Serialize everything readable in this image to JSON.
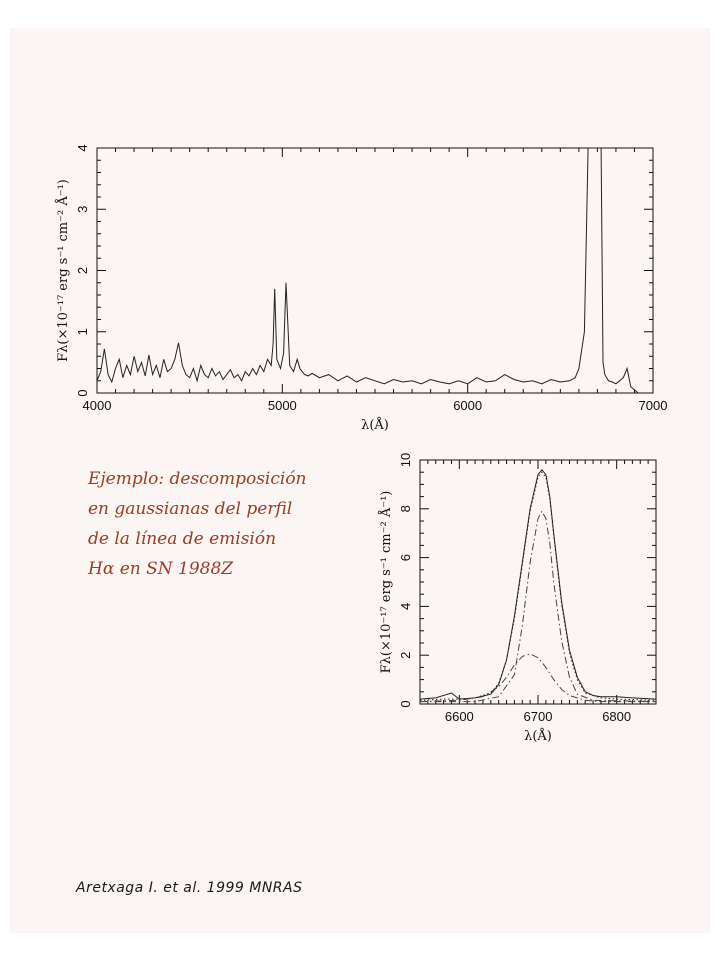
{
  "chart_data": [
    {
      "type": "line",
      "title": "",
      "xlabel": "λ(Å)",
      "ylabel": "Fλ(×10⁻¹⁷ erg s⁻¹ cm⁻² Å⁻¹)",
      "xlim": [
        4000,
        7000
      ],
      "ylim": [
        0,
        4
      ],
      "x_ticks": [
        4000,
        5000,
        6000,
        7000
      ],
      "y_ticks": [
        0,
        1,
        2,
        3,
        4
      ],
      "grid": false,
      "series": [
        {
          "x": [
            4000,
            4020,
            4040,
            4060,
            4080,
            4100,
            4120,
            4140,
            4160,
            4180,
            4200,
            4220,
            4240,
            4260,
            4280,
            4300,
            4320,
            4340,
            4360,
            4380,
            4400,
            4420,
            4440,
            4460,
            4480,
            4500,
            4520,
            4540,
            4560,
            4580,
            4600,
            4620,
            4640,
            4660,
            4680,
            4700,
            4720,
            4740,
            4760,
            4780,
            4800,
            4820,
            4840,
            4860,
            4880,
            4900,
            4920,
            4940,
            4950,
            4959,
            4970,
            4990,
            5007,
            5020,
            5040,
            5060,
            5080,
            5095,
            5107,
            5120,
            5140,
            5160,
            5200,
            5250,
            5300,
            5350,
            5400,
            5450,
            5500,
            5550,
            5600,
            5650,
            5700,
            5750,
            5800,
            5850,
            5900,
            5950,
            6000,
            6050,
            6100,
            6150,
            6200,
            6250,
            6300,
            6350,
            6400,
            6450,
            6500,
            6550,
            6580,
            6600,
            6630,
            6650,
            6670,
            6680,
            6690,
            6700,
            6710,
            6720,
            6730,
            6740,
            6760,
            6780,
            6800,
            6820,
            6840,
            6860,
            6880,
            6900,
            6920
          ],
          "y": [
            0.2,
            0.35,
            0.72,
            0.3,
            0.18,
            0.4,
            0.55,
            0.25,
            0.45,
            0.3,
            0.6,
            0.35,
            0.5,
            0.28,
            0.62,
            0.3,
            0.45,
            0.25,
            0.55,
            0.35,
            0.4,
            0.55,
            0.82,
            0.45,
            0.3,
            0.25,
            0.4,
            0.2,
            0.45,
            0.3,
            0.25,
            0.4,
            0.28,
            0.35,
            0.22,
            0.3,
            0.38,
            0.25,
            0.3,
            0.2,
            0.35,
            0.28,
            0.4,
            0.3,
            0.45,
            0.35,
            0.55,
            0.45,
            0.8,
            1.7,
            0.55,
            0.4,
            0.65,
            1.8,
            0.45,
            0.35,
            0.55,
            0.4,
            0.35,
            0.3,
            0.28,
            0.32,
            0.25,
            0.3,
            0.2,
            0.28,
            0.18,
            0.25,
            0.2,
            0.15,
            0.22,
            0.18,
            0.2,
            0.15,
            0.22,
            0.18,
            0.15,
            0.2,
            0.15,
            0.25,
            0.18,
            0.2,
            0.3,
            0.22,
            0.18,
            0.2,
            0.15,
            0.22,
            0.18,
            0.2,
            0.25,
            0.4,
            1.0,
            4.0,
            4.0,
            4.0,
            4.0,
            4.0,
            4.0,
            4.0,
            0.5,
            0.3,
            0.2,
            0.18,
            0.15,
            0.2,
            0.25,
            0.4,
            0.1,
            0.05,
            0.0
          ]
        }
      ]
    },
    {
      "type": "line",
      "title": "",
      "xlabel": "λ(Å)",
      "ylabel": "Fλ(×10⁻¹⁷ erg s⁻¹ cm⁻² Å⁻¹)",
      "xlim": [
        6550,
        6850
      ],
      "ylim": [
        0,
        10
      ],
      "x_ticks": [
        6600,
        6700,
        6800
      ],
      "y_ticks": [
        0,
        2,
        4,
        6,
        8,
        10
      ],
      "grid": false,
      "series": [
        {
          "style": "solid",
          "color": "#222222",
          "x": [
            6550,
            6570,
            6590,
            6600,
            6620,
            6640,
            6650,
            6660,
            6670,
            6680,
            6690,
            6700,
            6705,
            6710,
            6715,
            6720,
            6730,
            6740,
            6750,
            6760,
            6770,
            6780,
            6800,
            6820,
            6850
          ],
          "y": [
            0.2,
            0.25,
            0.45,
            0.2,
            0.25,
            0.4,
            0.8,
            1.8,
            3.6,
            5.8,
            8.0,
            9.4,
            9.6,
            9.4,
            8.5,
            7.0,
            4.2,
            2.2,
            1.1,
            0.5,
            0.35,
            0.3,
            0.3,
            0.25,
            0.2
          ]
        },
        {
          "style": "dotted",
          "color": "#222222",
          "x": [
            6550,
            6580,
            6600,
            6620,
            6640,
            6650,
            6660,
            6670,
            6680,
            6690,
            6700,
            6705,
            6710,
            6715,
            6720,
            6730,
            6740,
            6750,
            6760,
            6780,
            6800,
            6850
          ],
          "y": [
            0.15,
            0.2,
            0.2,
            0.25,
            0.45,
            0.85,
            1.8,
            3.5,
            5.7,
            7.9,
            9.3,
            9.5,
            9.3,
            8.4,
            6.9,
            4.1,
            2.1,
            1.0,
            0.45,
            0.25,
            0.2,
            0.15
          ]
        },
        {
          "style": "dashdot",
          "color": "#444444",
          "x": [
            6550,
            6620,
            6650,
            6670,
            6680,
            6690,
            6700,
            6705,
            6710,
            6715,
            6720,
            6730,
            6740,
            6750,
            6770,
            6850
          ],
          "y": [
            0.1,
            0.1,
            0.3,
            1.2,
            3.2,
            5.8,
            7.6,
            7.9,
            7.6,
            6.6,
            5.0,
            2.6,
            1.1,
            0.4,
            0.15,
            0.1
          ]
        },
        {
          "style": "dashdot",
          "color": "#444444",
          "x": [
            6550,
            6600,
            6630,
            6650,
            6660,
            6670,
            6680,
            6690,
            6700,
            6710,
            6720,
            6730,
            6740,
            6760,
            6780,
            6850
          ],
          "y": [
            0.1,
            0.15,
            0.3,
            0.7,
            1.1,
            1.6,
            1.95,
            2.05,
            1.9,
            1.5,
            1.0,
            0.6,
            0.35,
            0.15,
            0.1,
            0.1
          ]
        }
      ]
    }
  ],
  "note": {
    "lines": [
      "Ejemplo:   descomposición",
      "en  gaussianas  del  perfil",
      "de  la  línea  de  emisión",
      "Hα en  SN 1988Z"
    ]
  },
  "citation": "Aretxaga I. et al. 1999 MNRAS"
}
